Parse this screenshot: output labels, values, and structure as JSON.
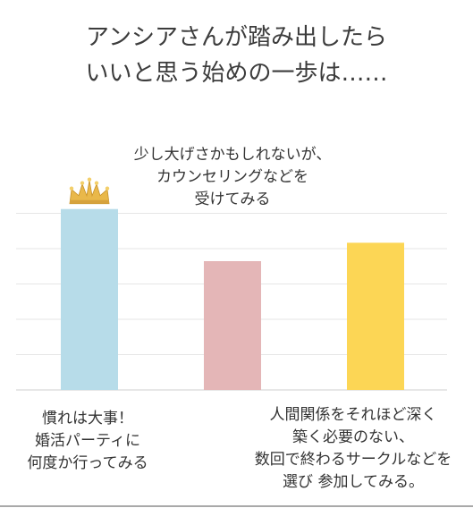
{
  "title": {
    "line1": "アンシアさんが踏み出したら",
    "line2": "いいと思う始めの一歩は……"
  },
  "chart_data": {
    "type": "bar",
    "categories": [
      "慣れは大事！婚活パーティに何度か行ってみる",
      "少し大げさかもしれないが、カウンセリングなどを受けてみる",
      "人間関係をそれほど深く築く必要のない、数回で終わるサークルなどを選び 参加してみる。"
    ],
    "values": [
      59,
      42,
      48
    ],
    "colors": [
      "#b7dce9",
      "#e4b6b7",
      "#fcd655"
    ],
    "top_marker": "crown-icon",
    "grid": true,
    "ylim": [
      0,
      70
    ]
  },
  "labels": {
    "a": [
      "慣れは大事！",
      "婚活パーティに",
      "何度か行ってみる"
    ],
    "b": [
      "少し大げさかもしれないが、",
      "カウンセリングなどを",
      "受けてみる"
    ],
    "c": [
      "人間関係をそれほど深く",
      "築く必要のない、",
      "数回で終わるサークルなどを",
      "選び 参加してみる。"
    ]
  }
}
